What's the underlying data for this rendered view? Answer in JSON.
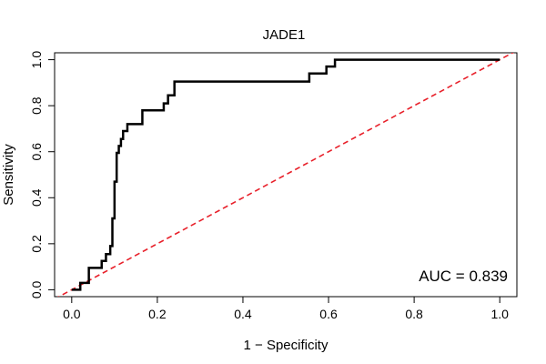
{
  "chart_data": {
    "type": "line",
    "title": "JADE1",
    "xlabel": "1 − Specificity",
    "ylabel": "Sensitivity",
    "xlim": [
      -0.04,
      1.04
    ],
    "ylim": [
      -0.03,
      1.03
    ],
    "xticks": [
      "0.0",
      "0.2",
      "0.4",
      "0.6",
      "0.8",
      "1.0"
    ],
    "yticks": [
      "0.0",
      "0.2",
      "0.4",
      "0.6",
      "0.8",
      "1.0"
    ],
    "grid": false,
    "annotation": "AUC = 0.839",
    "series": [
      {
        "color": "#000000",
        "x": [
          0.0,
          0.02,
          0.02,
          0.04,
          0.04,
          0.07,
          0.07,
          0.08,
          0.08,
          0.09,
          0.09,
          0.095,
          0.095,
          0.1,
          0.1,
          0.105,
          0.105,
          0.11,
          0.11,
          0.115,
          0.115,
          0.12,
          0.12,
          0.13,
          0.13,
          0.14,
          0.14,
          0.165,
          0.165,
          0.215,
          0.215,
          0.225,
          0.225,
          0.24,
          0.24,
          0.555,
          0.555,
          0.595,
          0.595,
          0.615,
          0.615,
          1.0
        ],
        "y": [
          0.0,
          0.0,
          0.03,
          0.03,
          0.095,
          0.095,
          0.125,
          0.125,
          0.155,
          0.155,
          0.19,
          0.19,
          0.31,
          0.31,
          0.47,
          0.47,
          0.595,
          0.595,
          0.625,
          0.625,
          0.655,
          0.655,
          0.69,
          0.69,
          0.72,
          0.72,
          0.72,
          0.72,
          0.78,
          0.78,
          0.81,
          0.81,
          0.845,
          0.845,
          0.905,
          0.905,
          0.94,
          0.94,
          0.97,
          0.97,
          1.0,
          1.0
        ]
      },
      {
        "color": "#e8202a",
        "x": [
          -0.04,
          1.04
        ],
        "y": [
          -0.04,
          1.04
        ]
      }
    ]
  }
}
